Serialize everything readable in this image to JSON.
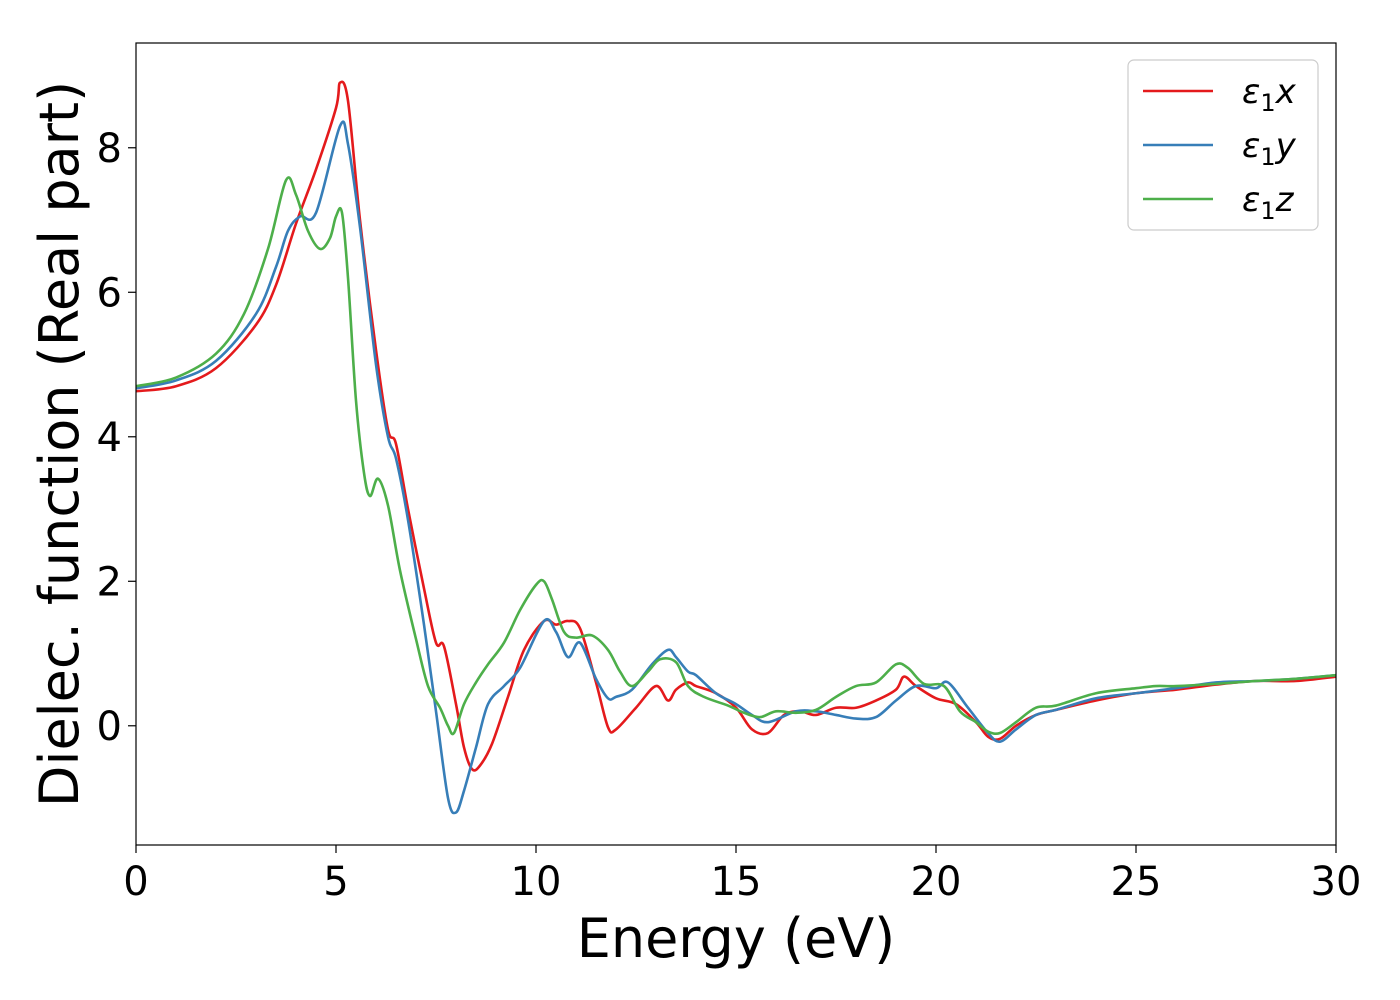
{
  "chart_data": {
    "type": "line",
    "xlabel": "Energy (eV)",
    "ylabel": "Dielec. function (Real part)",
    "xlim": [
      0,
      30
    ],
    "ylim": [
      -1.65,
      9.45
    ],
    "xticks": [
      0,
      5,
      10,
      15,
      20,
      25,
      30
    ],
    "yticks": [
      0,
      2,
      4,
      6,
      8
    ],
    "grid": false,
    "legend_position": "top-right",
    "series": [
      {
        "name": "ε1x",
        "legend_base": "ε",
        "legend_sub": "1",
        "legend_tail": "x",
        "color": "#e41a1c",
        "x": [
          0,
          1,
          2,
          3,
          3.5,
          4,
          4.5,
          5,
          5.1,
          5.3,
          5.6,
          6,
          6.3,
          6.5,
          6.8,
          7.2,
          7.5,
          7.7,
          8,
          8.2,
          8.4,
          8.6,
          8.9,
          9.3,
          9.7,
          10.2,
          10.5,
          10.8,
          11.1,
          11.5,
          11.8,
          12,
          12.5,
          13,
          13.3,
          13.5,
          13.8,
          14,
          14.5,
          15,
          15.4,
          15.8,
          16.2,
          16.6,
          17,
          17.5,
          18,
          18.5,
          19,
          19.2,
          19.5,
          20,
          20.5,
          21,
          21.3,
          21.6,
          22,
          22.5,
          23,
          24,
          25,
          26,
          27,
          28,
          29,
          30
        ],
        "y": [
          4.63,
          4.7,
          4.95,
          5.55,
          6.1,
          6.95,
          7.7,
          8.55,
          8.9,
          8.65,
          7.0,
          5.2,
          4.1,
          3.9,
          3.0,
          1.9,
          1.15,
          1.1,
          0.3,
          -0.3,
          -0.6,
          -0.55,
          -0.25,
          0.4,
          1.05,
          1.45,
          1.4,
          1.45,
          1.35,
          0.6,
          -0.02,
          -0.05,
          0.25,
          0.55,
          0.35,
          0.5,
          0.6,
          0.55,
          0.45,
          0.25,
          -0.05,
          -0.1,
          0.15,
          0.2,
          0.15,
          0.25,
          0.25,
          0.35,
          0.5,
          0.68,
          0.55,
          0.38,
          0.3,
          0.05,
          -0.15,
          -0.18,
          0.0,
          0.15,
          0.22,
          0.35,
          0.45,
          0.5,
          0.57,
          0.62,
          0.62,
          0.68
        ]
      },
      {
        "name": "ε1y",
        "legend_base": "ε",
        "legend_sub": "1",
        "legend_tail": "y",
        "color": "#377eb8",
        "x": [
          0,
          1,
          2,
          3,
          3.5,
          3.8,
          4.1,
          4.5,
          5.1,
          5.3,
          5.6,
          6,
          6.3,
          6.5,
          6.8,
          7.2,
          7.5,
          7.8,
          8,
          8.2,
          8.5,
          8.8,
          9.2,
          9.6,
          10.2,
          10.5,
          10.8,
          11.1,
          11.5,
          11.8,
          12,
          12.4,
          12.9,
          13.3,
          13.5,
          13.8,
          14,
          14.5,
          15,
          15.4,
          15.8,
          16.5,
          17,
          17.5,
          18,
          18.5,
          19,
          19.5,
          20,
          20.3,
          20.8,
          21.3,
          21.6,
          22,
          22.5,
          23,
          24,
          25,
          26,
          27,
          28,
          29,
          30
        ],
        "y": [
          4.67,
          4.78,
          5.05,
          5.7,
          6.35,
          6.85,
          7.05,
          7.1,
          8.3,
          8.05,
          6.9,
          5.0,
          4.0,
          3.7,
          2.85,
          1.4,
          0.2,
          -1.0,
          -1.2,
          -0.9,
          -0.3,
          0.3,
          0.55,
          0.8,
          1.45,
          1.3,
          0.95,
          1.15,
          0.65,
          0.38,
          0.4,
          0.5,
          0.85,
          1.05,
          0.95,
          0.75,
          0.7,
          0.45,
          0.3,
          0.15,
          0.05,
          0.2,
          0.2,
          0.15,
          0.1,
          0.12,
          0.35,
          0.55,
          0.52,
          0.6,
          0.25,
          -0.1,
          -0.22,
          -0.05,
          0.15,
          0.22,
          0.38,
          0.45,
          0.52,
          0.6,
          0.62,
          0.65,
          0.7
        ]
      },
      {
        "name": "ε1z",
        "legend_base": "ε",
        "legend_sub": "1",
        "legend_tail": "z",
        "color": "#4daf4a",
        "x": [
          0,
          1,
          2,
          2.7,
          3.3,
          3.75,
          4.0,
          4.3,
          4.6,
          4.85,
          5.0,
          5.15,
          5.3,
          5.5,
          5.7,
          5.85,
          6.05,
          6.3,
          6.6,
          7.0,
          7.3,
          7.6,
          7.8,
          7.95,
          8.2,
          8.5,
          8.8,
          9.2,
          9.6,
          10.0,
          10.2,
          10.4,
          10.7,
          11.0,
          11.4,
          11.8,
          12.1,
          12.4,
          12.8,
          13.1,
          13.5,
          13.8,
          14.2,
          14.8,
          15.2,
          15.6,
          16.0,
          16.5,
          17.0,
          17.5,
          18.0,
          18.5,
          19.0,
          19.3,
          19.7,
          20.2,
          20.6,
          21.0,
          21.3,
          21.6,
          22.0,
          22.5,
          23.0,
          24.0,
          25.0,
          25.5,
          26.0,
          27.0,
          28.0,
          29.0,
          30.0
        ],
        "y": [
          4.7,
          4.82,
          5.15,
          5.7,
          6.6,
          7.55,
          7.35,
          6.85,
          6.6,
          6.75,
          7.05,
          7.1,
          6.2,
          4.5,
          3.5,
          3.18,
          3.42,
          3.05,
          2.15,
          1.2,
          0.55,
          0.25,
          0.0,
          -0.1,
          0.3,
          0.6,
          0.85,
          1.15,
          1.6,
          1.95,
          2.0,
          1.75,
          1.3,
          1.22,
          1.25,
          1.05,
          0.75,
          0.55,
          0.75,
          0.92,
          0.88,
          0.55,
          0.4,
          0.28,
          0.18,
          0.12,
          0.2,
          0.18,
          0.22,
          0.4,
          0.55,
          0.6,
          0.85,
          0.8,
          0.58,
          0.55,
          0.2,
          0.05,
          -0.08,
          -0.1,
          0.05,
          0.25,
          0.28,
          0.45,
          0.52,
          0.55,
          0.55,
          0.58,
          0.62,
          0.65,
          0.7
        ]
      }
    ]
  }
}
